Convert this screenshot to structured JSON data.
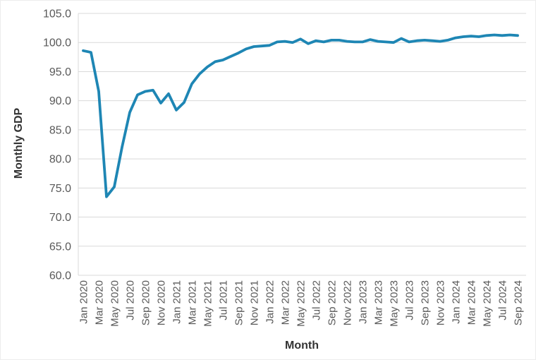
{
  "chart_data": {
    "type": "line",
    "title": "",
    "xlabel": "Month",
    "ylabel": "Monthly GDP",
    "ylim": [
      60.0,
      105.0
    ],
    "ytick_step": 5.0,
    "ytick_labels": [
      "105.0",
      "100.0",
      "95.0",
      "90.0",
      "85.0",
      "80.0",
      "75.0",
      "70.0",
      "65.0",
      "60.0"
    ],
    "yticks": [
      105.0,
      100.0,
      95.0,
      90.0,
      85.0,
      80.0,
      75.0,
      70.0,
      65.0,
      60.0
    ],
    "grid": "horizontal",
    "legend": "none",
    "line_color": "#1E86B4",
    "gridline_color": "#D9D9D9",
    "tick_label_color": "#595959",
    "axis_title_color": "#333333",
    "background_color": "#FFFFFF",
    "x_tick_every": 2,
    "x_tick_labels": [
      "Jan 2020",
      "Mar 2020",
      "May 2020",
      "Jul 2020",
      "Sep 2020",
      "Nov 2020",
      "Jan 2021",
      "Mar 2021",
      "May 2021",
      "Jul 2021",
      "Sep 2021",
      "Nov 2021",
      "Jan 2022",
      "Mar 2022",
      "May 2022",
      "Jul 2022",
      "Sep 2022",
      "Nov 2022",
      "Jan 2023",
      "Mar 2023",
      "May 2023",
      "Jul 2023",
      "Sep 2023",
      "Nov 2023",
      "Jan 2024",
      "Mar 2024",
      "May 2024",
      "Jul 2024",
      "Sep 2024"
    ],
    "x": [
      "Jan 2020",
      "Feb 2020",
      "Mar 2020",
      "Apr 2020",
      "May 2020",
      "Jun 2020",
      "Jul 2020",
      "Aug 2020",
      "Sep 2020",
      "Oct 2020",
      "Nov 2020",
      "Dec 2020",
      "Jan 2021",
      "Feb 2021",
      "Mar 2021",
      "Apr 2021",
      "May 2021",
      "Jun 2021",
      "Jul 2021",
      "Aug 2021",
      "Sep 2021",
      "Oct 2021",
      "Nov 2021",
      "Dec 2021",
      "Jan 2022",
      "Feb 2022",
      "Mar 2022",
      "Apr 2022",
      "May 2022",
      "Jun 2022",
      "Jul 2022",
      "Aug 2022",
      "Sep 2022",
      "Oct 2022",
      "Nov 2022",
      "Dec 2022",
      "Jan 2023",
      "Feb 2023",
      "Mar 2023",
      "Apr 2023",
      "May 2023",
      "Jun 2023",
      "Jul 2023",
      "Aug 2023",
      "Sep 2023",
      "Oct 2023",
      "Nov 2023",
      "Dec 2023",
      "Jan 2024",
      "Feb 2024",
      "Mar 2024",
      "Apr 2024",
      "May 2024",
      "Jun 2024",
      "Jul 2024",
      "Aug 2024",
      "Sep 2024"
    ],
    "series": [
      {
        "name": "Monthly GDP",
        "values": [
          98.6,
          98.3,
          91.6,
          73.5,
          75.2,
          82.0,
          88.0,
          91.0,
          91.6,
          91.8,
          89.6,
          91.2,
          88.4,
          89.7,
          92.9,
          94.6,
          95.8,
          96.7,
          97.0,
          97.6,
          98.2,
          98.9,
          99.3,
          99.4,
          99.5,
          100.1,
          100.2,
          100.0,
          100.6,
          99.8,
          100.3,
          100.1,
          100.4,
          100.4,
          100.2,
          100.1,
          100.1,
          100.5,
          100.2,
          100.1,
          100.0,
          100.7,
          100.1,
          100.3,
          100.4,
          100.3,
          100.2,
          100.4,
          100.8,
          101.0,
          101.1,
          101.0,
          101.2,
          101.3,
          101.2,
          101.3,
          101.2
        ]
      }
    ]
  }
}
